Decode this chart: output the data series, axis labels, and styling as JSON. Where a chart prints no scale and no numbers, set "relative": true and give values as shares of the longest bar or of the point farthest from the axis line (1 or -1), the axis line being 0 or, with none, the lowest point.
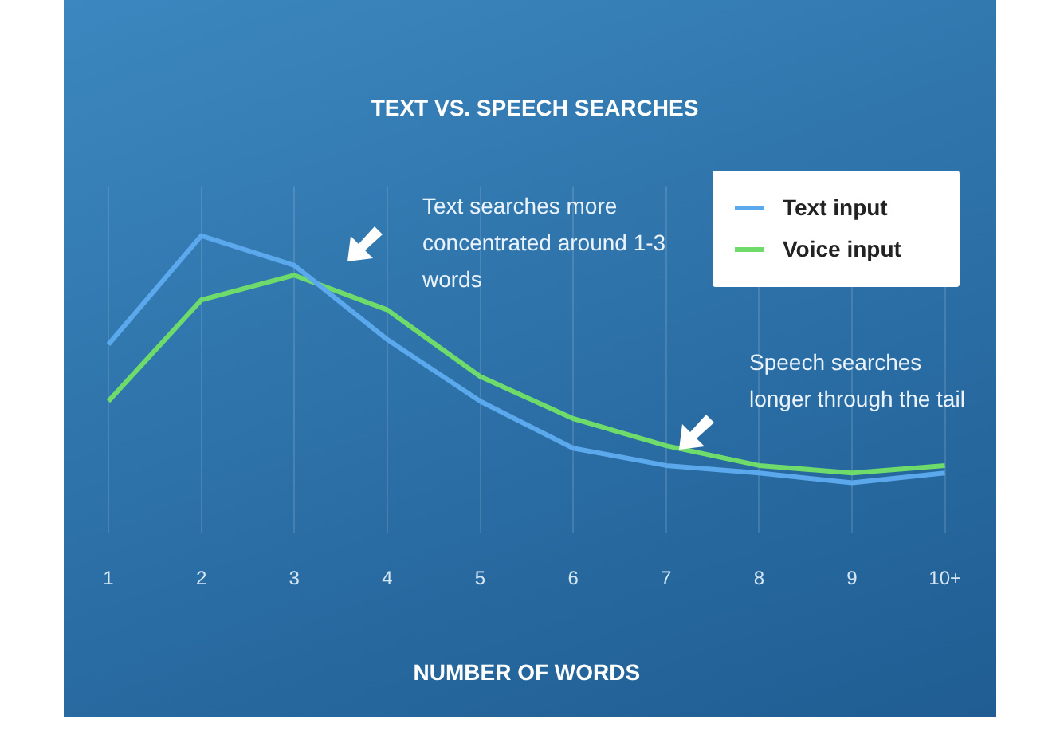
{
  "chart_data": {
    "type": "line",
    "title": "TEXT VS. SPEECH SEARCHES",
    "xlabel": "NUMBER OF WORDS",
    "relative": true,
    "categories": [
      "1",
      "2",
      "3",
      "4",
      "5",
      "6",
      "7",
      "8",
      "9",
      "10+"
    ],
    "series": [
      {
        "name": "Text input",
        "color": "#5ba8ec",
        "values": [
          0.56,
          1,
          0.88,
          0.58,
          0.33,
          0.14,
          0.07,
          0.04,
          0,
          0.04
        ]
      },
      {
        "name": "Voice input",
        "color": "#6edb6b",
        "values": [
          0.33,
          0.74,
          0.84,
          0.7,
          0.43,
          0.26,
          0.15,
          0.07,
          0.04,
          0.07
        ]
      }
    ],
    "annotations": [
      "Text searches more concentrated around 1-3 words",
      "Speech searches longer through the tail"
    ],
    "grid": "x",
    "legend": "top right"
  }
}
